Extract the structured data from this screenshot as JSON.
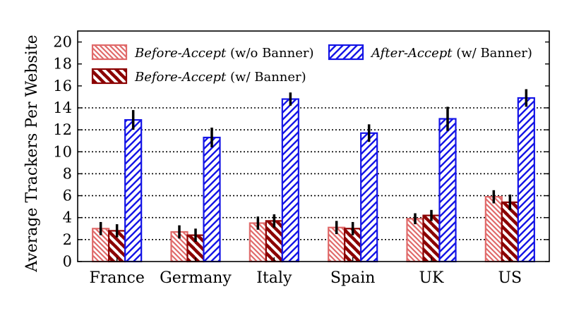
{
  "chart_data": {
    "type": "bar",
    "title": "",
    "xlabel": "",
    "ylabel": "Average Trackers Per Website",
    "ylim": [
      0,
      21
    ],
    "yticks": [
      0,
      2,
      4,
      6,
      8,
      10,
      12,
      14,
      16,
      18,
      20
    ],
    "grid_lines_y": [
      2,
      4,
      6,
      8,
      10,
      12,
      14
    ],
    "grid": "dotted horizontal",
    "legend_position": "top",
    "categories": [
      "France",
      "Germany",
      "Italy",
      "Spain",
      "UK",
      "US"
    ],
    "series": [
      {
        "name_italic": "Before-Accept",
        "name_suffix": " (w/o Banner)",
        "values": [
          3.0,
          2.7,
          3.5,
          3.1,
          3.9,
          5.9
        ],
        "errors": [
          0.6,
          0.6,
          0.6,
          0.6,
          0.5,
          0.6
        ],
        "edge_color": "#e06a6a",
        "hatch_color": "#e06a6a",
        "hatch": "backslash-dense"
      },
      {
        "name_italic": "Before-Accept",
        "name_suffix": " (w/ Banner)",
        "values": [
          2.8,
          2.4,
          3.7,
          3.0,
          4.2,
          5.4
        ],
        "errors": [
          0.6,
          0.6,
          0.6,
          0.6,
          0.5,
          0.7
        ],
        "edge_color": "#8b0000",
        "hatch_color": "#8b0000",
        "hatch": "backslash-sparse"
      },
      {
        "name_italic": "After-Accept",
        "name_suffix": " (w/ Banner)",
        "values": [
          12.9,
          11.3,
          14.8,
          11.7,
          13.0,
          14.9
        ],
        "errors": [
          0.9,
          0.9,
          0.6,
          0.8,
          1.1,
          0.8
        ],
        "edge_color": "#1414e6",
        "hatch_color": "#1414e6",
        "hatch": "slash"
      }
    ]
  }
}
